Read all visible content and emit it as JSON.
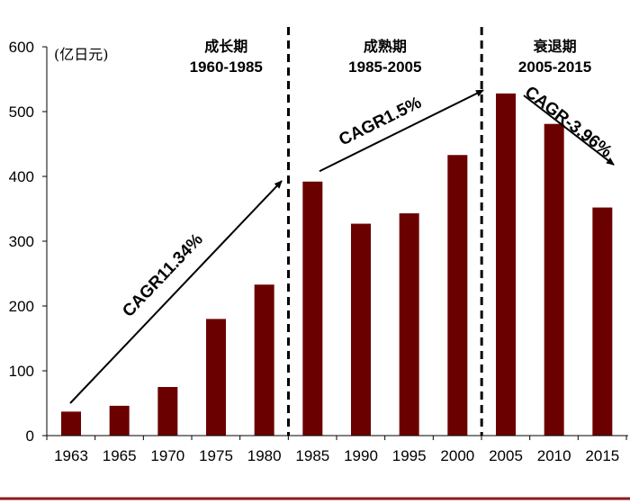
{
  "chart_data": {
    "type": "bar",
    "unit_label": "(亿日元)",
    "categories": [
      "1963",
      "1965",
      "1970",
      "1975",
      "1980",
      "1985",
      "1990",
      "1995",
      "2000",
      "2005",
      "2010",
      "2015"
    ],
    "values": [
      37,
      46,
      75,
      180,
      233,
      392,
      327,
      343,
      433,
      528,
      481,
      352
    ],
    "ylim": [
      0,
      600
    ],
    "yticks": [
      0,
      100,
      200,
      300,
      400,
      500,
      600
    ],
    "bar_color": "#6b0000",
    "phases": [
      {
        "name": "成长期",
        "range": "1960-1985"
      },
      {
        "name": "成熟期",
        "range": "1985-2005"
      },
      {
        "name": "衰退期",
        "range": "2005-2015"
      }
    ],
    "annotations": [
      {
        "label": "CAGR11.34%",
        "from_value": 50,
        "to_value": 393
      },
      {
        "label": "CAGR1.5%",
        "from_value": 408,
        "to_value": 533
      },
      {
        "label": "CAGR-3.96%",
        "from_value": 525,
        "to_value": 418
      }
    ]
  }
}
